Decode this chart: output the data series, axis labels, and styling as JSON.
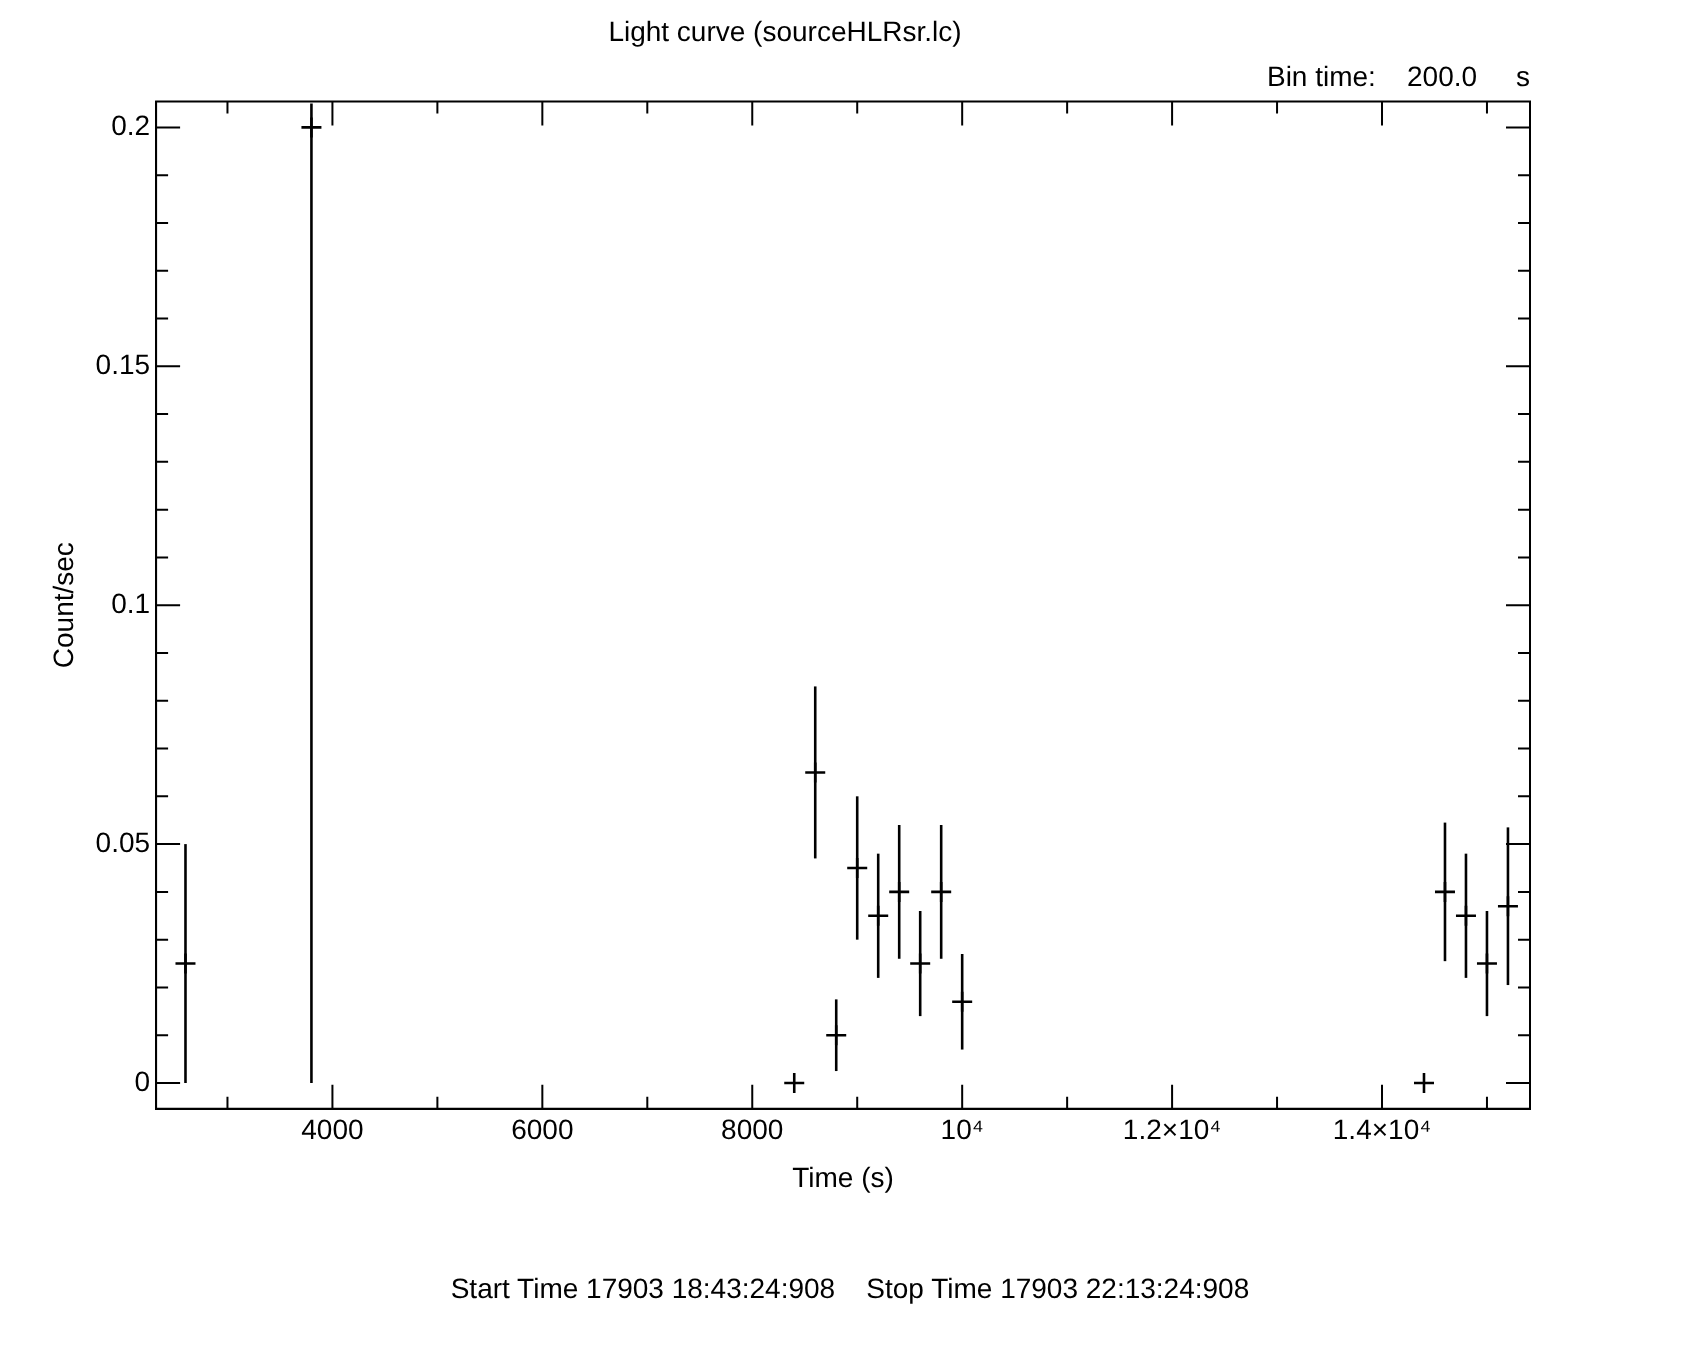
{
  "chart_data": {
    "type": "scatter",
    "title": "Light curve (sourceHLRsr.lc)",
    "xlabel": "Time (s)",
    "ylabel": "Count/sec",
    "annotations": [
      "Bin time:    200.0     s",
      "Start Time 17903 18:43:24:908    Stop Time 17903 22:13:24:908"
    ],
    "x": [
      2600,
      3800,
      8400,
      8600,
      8800,
      9000,
      9200,
      9400,
      9600,
      9800,
      10000,
      14400,
      14600,
      14800,
      15000,
      15200
    ],
    "series": [
      {
        "color": "#000000",
        "values": [
          0.025,
          0.2,
          0,
          0.065,
          0.01,
          0.045,
          0.035,
          0.04,
          0.025,
          0.04,
          0.017,
          0,
          0.04,
          0.035,
          0.025,
          0.037
        ],
        "errors": [
          0.025,
          [
            0,
            0.205
          ],
          null,
          0.018,
          0.0075,
          0.015,
          0.013,
          0.014,
          0.011,
          0.014,
          0.01,
          null,
          0.0145,
          0.013,
          0.011,
          0.0165
        ]
      }
    ],
    "xlim": [
      2320,
      15410
    ],
    "ylim": [
      -0.0054,
      0.2054
    ],
    "xticks": [
      {
        "value": 3000,
        "label": null
      },
      4000,
      {
        "value": 5000,
        "label": null
      },
      6000,
      {
        "value": 7000,
        "label": null
      },
      8000,
      {
        "value": 9000,
        "label": null
      },
      {
        "value": 10000,
        "label": "10⁴"
      },
      {
        "value": 11000,
        "label": null
      },
      {
        "value": 12000,
        "label": "1.2×10⁴"
      },
      {
        "value": 13000,
        "label": null
      },
      {
        "value": 14000,
        "label": "1.4×10⁴"
      },
      {
        "value": 15000,
        "label": null
      }
    ],
    "yticks": [
      0,
      {
        "value": 0.01,
        "label": null
      },
      {
        "value": 0.02,
        "label": null
      },
      {
        "value": 0.03,
        "label": null
      },
      {
        "value": 0.04,
        "label": null
      },
      0.05,
      {
        "value": 0.06,
        "label": null
      },
      {
        "value": 0.07,
        "label": null
      },
      {
        "value": 0.08,
        "label": null
      },
      {
        "value": 0.09,
        "label": null
      },
      0.1,
      {
        "value": 0.11,
        "label": null
      },
      {
        "value": 0.12,
        "label": null
      },
      {
        "value": 0.13,
        "label": null
      },
      {
        "value": 0.14,
        "label": null
      },
      0.15,
      {
        "value": 0.16,
        "label": null
      },
      {
        "value": 0.17,
        "label": null
      },
      {
        "value": 0.18,
        "label": null
      },
      {
        "value": 0.19,
        "label": null
      },
      0.2
    ],
    "grid": false,
    "legend": false,
    "marker": "cross"
  }
}
